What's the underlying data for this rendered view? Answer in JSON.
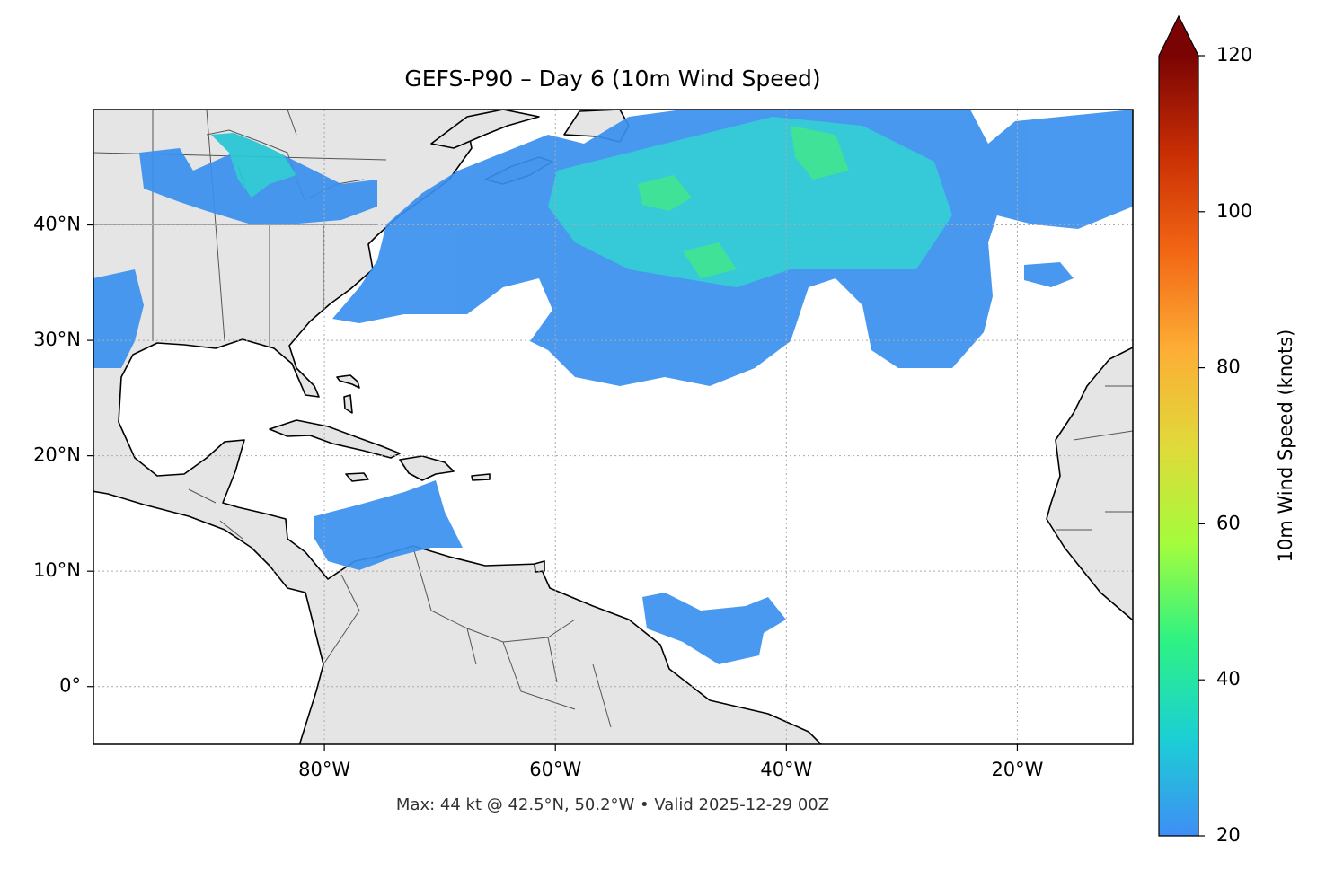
{
  "chart_data": {
    "type": "map",
    "title": "GEFS-P90 – Day 6 (10m Wind Speed)",
    "note": "Max: 44 kt @ 42.5°N, 50.2°W • Valid 2025-12-29 00Z",
    "xlim": [
      -100,
      -10
    ],
    "ylim": [
      -5,
      50
    ],
    "xticks": [
      {
        "value": -80,
        "label": "80°W"
      },
      {
        "value": -60,
        "label": "60°W"
      },
      {
        "value": -40,
        "label": "40°W"
      },
      {
        "value": -20,
        "label": "20°W"
      }
    ],
    "yticks": [
      {
        "value": 0,
        "label": "0°"
      },
      {
        "value": 10,
        "label": "10°N"
      },
      {
        "value": 20,
        "label": "20°N"
      },
      {
        "value": 30,
        "label": "30°N"
      },
      {
        "value": 40,
        "label": "40°N"
      }
    ],
    "grid": true,
    "colorbar": {
      "label": "10m Wind Speed (knots)",
      "lim": [
        20,
        120
      ],
      "ticks": [
        20,
        40,
        60,
        80,
        100,
        120
      ],
      "extend": "max",
      "colors": [
        "#3f8ef5",
        "#1bcfd4",
        "#2ef283",
        "#a4fc3c",
        "#e0d93a",
        "#fdad35",
        "#f26614",
        "#c92e04",
        "#7a0403"
      ]
    }
  }
}
